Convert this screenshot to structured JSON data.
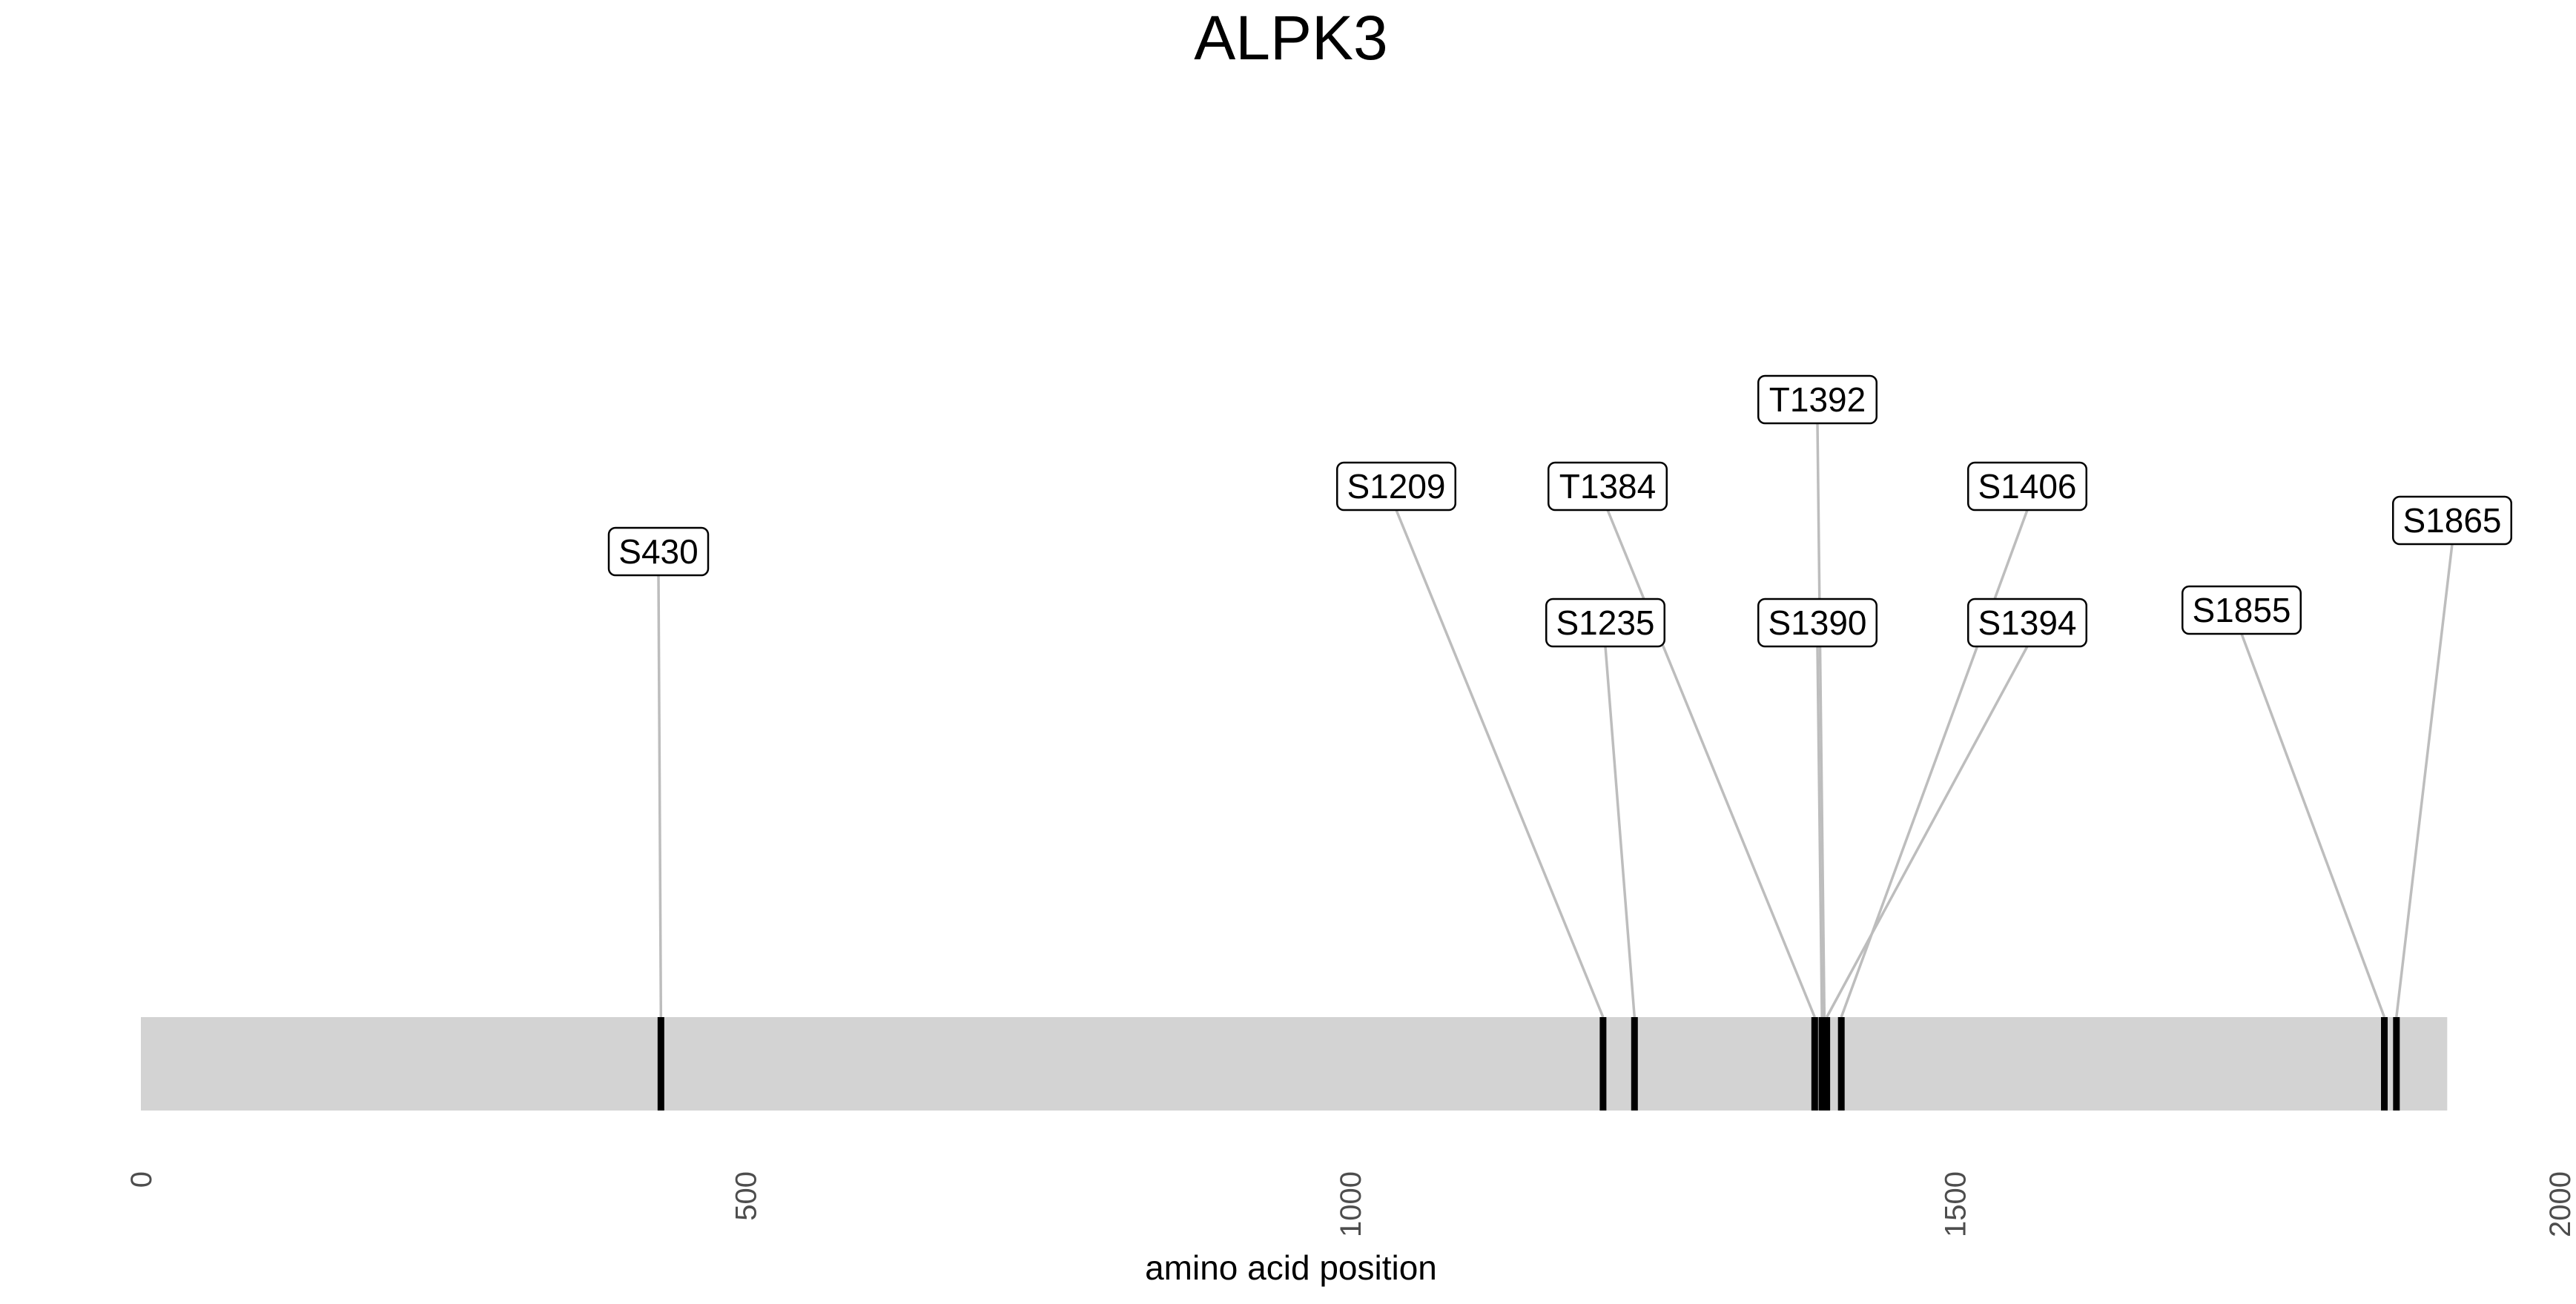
{
  "chart_data": {
    "type": "lollipop",
    "title": "ALPK3",
    "xlabel": "amino acid position",
    "xlim": [
      0,
      2000
    ],
    "x_ticks": [
      "0",
      "500",
      "1000",
      "1500",
      "2000"
    ],
    "protein_length": 1907,
    "grid": false,
    "colors": {
      "protein_bar": "#d3d3d3",
      "site_mark": "#000000",
      "connector": "#bdbdbd",
      "label_border": "#000000",
      "label_fill": "#ffffff"
    },
    "sites": [
      {
        "label": "S430",
        "position": 430
      },
      {
        "label": "S1209",
        "position": 1209
      },
      {
        "label": "S1235",
        "position": 1235
      },
      {
        "label": "T1384",
        "position": 1384
      },
      {
        "label": "S1390",
        "position": 1390
      },
      {
        "label": "T1392",
        "position": 1392
      },
      {
        "label": "S1394",
        "position": 1394
      },
      {
        "label": "S1406",
        "position": 1406
      },
      {
        "label": "S1855",
        "position": 1855
      },
      {
        "label": "S1865",
        "position": 1865
      }
    ]
  }
}
